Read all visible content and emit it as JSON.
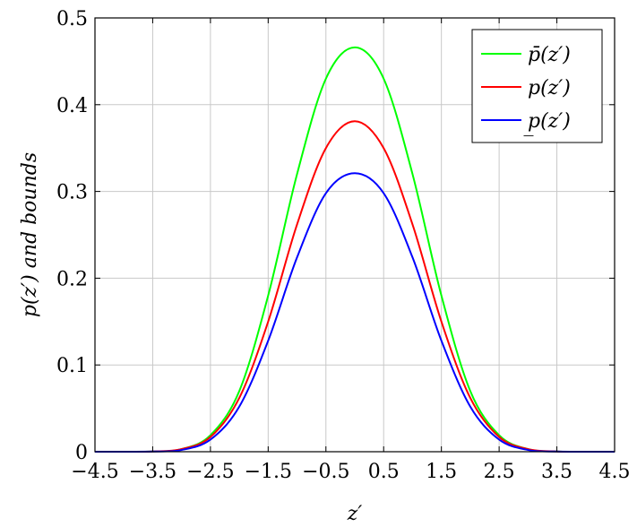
{
  "chart_data": {
    "type": "line",
    "title": "",
    "xlabel": "z′",
    "ylabel": "p(z′) and bounds",
    "xlim": [
      -4.5,
      4.5
    ],
    "ylim": [
      0,
      0.5
    ],
    "x_ticks": [
      "−4.5",
      "−3.5",
      "−2.5",
      "−1.5",
      "−0.5",
      "0.5",
      "1.5",
      "2.5",
      "3.5",
      "4.5"
    ],
    "x_tick_values": [
      -4.5,
      -3.5,
      -2.5,
      -1.5,
      -0.5,
      0.5,
      1.5,
      2.5,
      3.5,
      4.5
    ],
    "y_ticks": [
      "0",
      "0.1",
      "0.2",
      "0.3",
      "0.4",
      "0.5"
    ],
    "y_tick_values": [
      0,
      0.1,
      0.2,
      0.3,
      0.4,
      0.5
    ],
    "grid": true,
    "legend_position": "top-right",
    "x": [
      -4.5,
      -4.0,
      -3.5,
      -3.0,
      -2.5,
      -2.0,
      -1.5,
      -1.0,
      -0.5,
      0.0,
      0.5,
      1.0,
      1.5,
      2.0,
      2.5,
      3.0,
      3.5,
      4.0,
      4.5
    ],
    "series": [
      {
        "name": "p̄(z′)",
        "color": "#00ff00",
        "values": [
          0.0,
          0.0,
          0.0003,
          0.003,
          0.019,
          0.07,
          0.18,
          0.32,
          0.43,
          0.466,
          0.43,
          0.32,
          0.18,
          0.07,
          0.019,
          0.003,
          0.0003,
          0.0,
          0.0
        ]
      },
      {
        "name": "p(z′)",
        "color": "#ff0000",
        "values": [
          0.0,
          0.0,
          0.0003,
          0.003,
          0.017,
          0.062,
          0.15,
          0.262,
          0.35,
          0.381,
          0.35,
          0.262,
          0.15,
          0.062,
          0.017,
          0.003,
          0.0003,
          0.0,
          0.0
        ]
      },
      {
        "name": "p̲(z′)",
        "color": "#0000ff",
        "values": [
          0.0,
          0.0,
          0.0002,
          0.002,
          0.014,
          0.052,
          0.128,
          0.224,
          0.298,
          0.321,
          0.298,
          0.224,
          0.128,
          0.052,
          0.014,
          0.002,
          0.0002,
          0.0,
          0.0
        ]
      }
    ]
  }
}
